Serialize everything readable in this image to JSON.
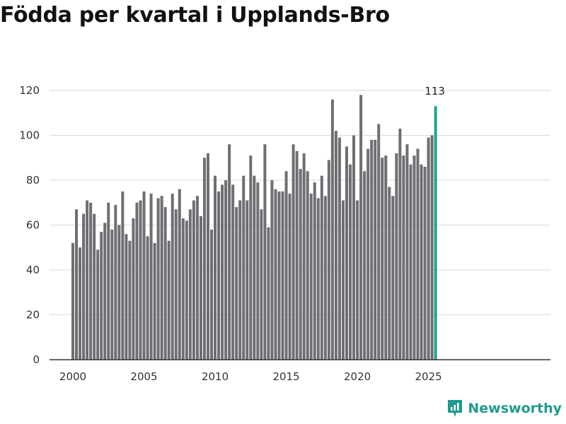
{
  "chart_data": {
    "type": "bar",
    "title": "Födda per kvartal i Upplands-Bro",
    "xlabel": "",
    "ylabel": "",
    "ylim": [
      0,
      120
    ],
    "yticks": [
      "0",
      "20",
      "40",
      "60",
      "80",
      "100",
      "120"
    ],
    "xticks": [
      "2000",
      "2005",
      "2010",
      "2015",
      "2020",
      "2025"
    ],
    "start": {
      "year": 2000,
      "quarter": 1
    },
    "highlight_label": "113",
    "colors": {
      "bar": "#6f6e73",
      "highlight": "#21a294",
      "grid": "#d9d9d9",
      "axis": "#333333"
    },
    "series": [
      {
        "name": "Födda",
        "values": [
          52,
          67,
          50,
          65,
          71,
          70,
          65,
          49,
          57,
          61,
          70,
          58,
          69,
          60,
          75,
          56,
          53,
          63,
          70,
          71,
          75,
          55,
          74,
          52,
          72,
          73,
          68,
          53,
          74,
          67,
          76,
          63,
          62,
          67,
          71,
          73,
          64,
          90,
          92,
          58,
          82,
          75,
          78,
          80,
          96,
          78,
          68,
          71,
          82,
          71,
          91,
          82,
          79,
          67,
          96,
          59,
          80,
          76,
          75,
          75,
          84,
          74,
          96,
          93,
          85,
          92,
          84,
          74,
          79,
          72,
          82,
          73,
          89,
          116,
          102,
          99,
          71,
          95,
          87,
          100,
          71,
          118,
          84,
          94,
          98,
          98,
          105,
          90,
          91,
          77,
          73,
          92,
          103,
          91,
          96,
          87,
          91,
          94,
          87,
          86,
          99,
          100,
          113
        ]
      }
    ]
  },
  "brand": {
    "name": "Newsworthy",
    "logo_icon": "newsworthy-logo-icon"
  }
}
